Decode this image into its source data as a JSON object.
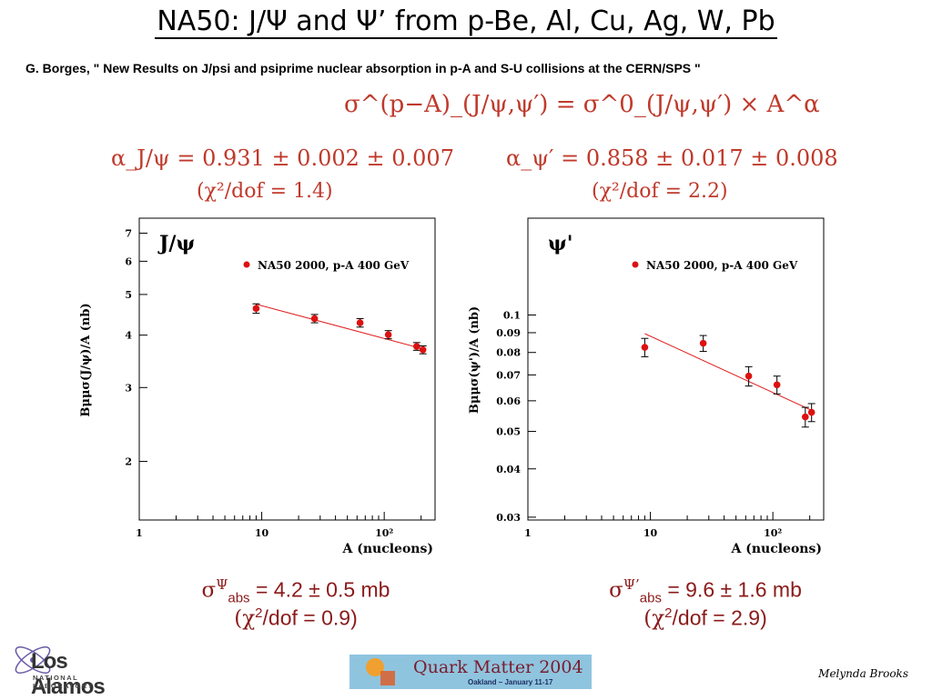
{
  "slide": {
    "title": "NA50:  J/Ψ and Ψ’ from p-Be, Al, Cu, Ag, W, Pb",
    "reference": "G. Borges, \" New Results on J/psi and psiprime nuclear absorption in p-A and S-U collisions at the CERN/SPS \"",
    "formula_main": "σ^(p−A)_(J/ψ,ψ′) = σ^0_(J/ψ,ψ′) × A^α",
    "alpha_jpsi": "α_J/ψ = 0.931 ± 0.002 ± 0.007",
    "alpha_jpsi_chi": "(χ²/dof = 1.4)",
    "alpha_psip": "α_ψ′ = 0.858 ± 0.017 ± 0.008",
    "alpha_psip_chi": "(χ²/dof = 2.2)",
    "result_jpsi": {
      "sym": "σ",
      "sup": "Ψ",
      "sub": "abs",
      "value": " = 4.2 ± 0.5 mb",
      "chi_open": "(χ",
      "chi_sup": "2",
      "chi_rest": "/dof = 0.9)"
    },
    "result_psip": {
      "sym": "σ",
      "sup": "Ψ’",
      "sub": "abs",
      "value": " = 9.6 ± 1.6 mb",
      "chi_open": "(χ",
      "chi_sup": "2",
      "chi_rest": "/dof = 2.9)"
    },
    "logo_lanl_main": "Los Alamos",
    "logo_lanl_sub": "NATIONAL LABORATORY",
    "logo_qm_title": "Quark Matter 2004",
    "logo_qm_sub": "Oakland – January 11-17",
    "author": "Melynda Brooks"
  },
  "colors": {
    "formula": "#c0392b",
    "data": "#dd1111",
    "fit": "#e02020",
    "result": "#8b1a1a"
  },
  "chart_data": [
    {
      "type": "scatter",
      "label": "J/ψ",
      "xlabel": "A (nucleons)",
      "ylabel": "Bμμσ(J/ψ)/A (nb)",
      "xscale": "log",
      "yscale": "log",
      "xlim": [
        1,
        260
      ],
      "ylim": [
        1.45,
        7.6
      ],
      "xticks": [
        1,
        10,
        100
      ],
      "xticklabels": [
        "1",
        "10",
        "10²"
      ],
      "yticks": [
        2,
        3,
        4,
        5,
        6,
        7
      ],
      "yticklabels": [
        "2",
        "3",
        "4",
        "5",
        "6",
        "7"
      ],
      "series": [
        {
          "name": "NA50 2000, p-A 400 GeV",
          "x": [
            9,
            27,
            63.5,
            108,
            184,
            207
          ],
          "y": [
            4.63,
            4.38,
            4.28,
            4.01,
            3.76,
            3.69
          ],
          "yerr": [
            0.12,
            0.1,
            0.1,
            0.09,
            0.08,
            0.08
          ]
        }
      ],
      "fit": {
        "x": [
          9,
          207
        ],
        "y": [
          4.74,
          3.71
        ]
      },
      "legend_position": "top-right"
    },
    {
      "type": "scatter",
      "label": "ψ'",
      "xlabel": "A (nucleons)",
      "ylabel": "Bμμσ(ψ')/A (nb)",
      "xscale": "log",
      "yscale": "log",
      "xlim": [
        1,
        260
      ],
      "ylim": [
        0.0295,
        0.178
      ],
      "xticks": [
        1,
        10,
        100
      ],
      "xticklabels": [
        "1",
        "10",
        "10²"
      ],
      "yticks": [
        0.03,
        0.04,
        0.05,
        0.06,
        0.07,
        0.08,
        0.09,
        0.1
      ],
      "yticklabels": [
        "0.03",
        "0.04",
        "0.05",
        "0.06",
        "0.07",
        "0.08",
        "0.09",
        "0.1"
      ],
      "series": [
        {
          "name": "NA50 2000, p-A 400 GeV",
          "x": [
            9,
            27,
            63.5,
            108,
            184,
            207
          ],
          "y": [
            0.0825,
            0.0845,
            0.0695,
            0.066,
            0.0545,
            0.056
          ],
          "yerr": [
            0.0045,
            0.004,
            0.004,
            0.0035,
            0.0032,
            0.003
          ]
        }
      ],
      "fit": {
        "x": [
          9,
          207
        ],
        "y": [
          0.0895,
          0.0567
        ]
      },
      "legend_position": "top-right"
    }
  ]
}
